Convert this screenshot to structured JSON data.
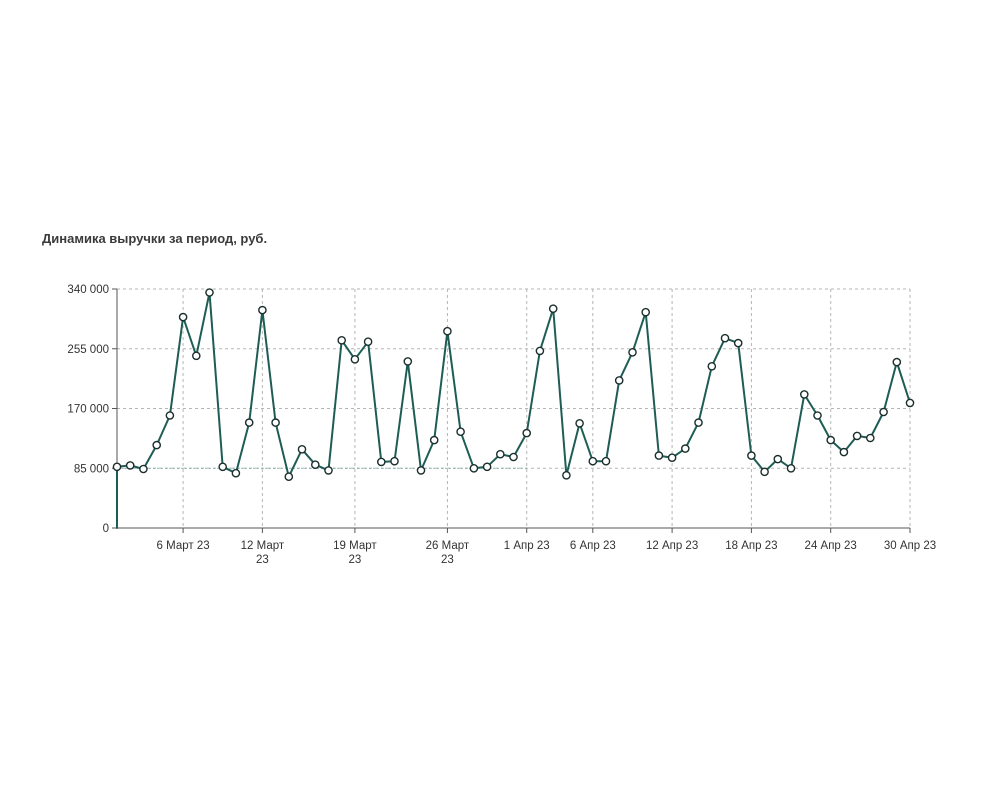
{
  "chart_data": {
    "type": "line",
    "title": "Динамика выручки за период, руб.",
    "xlabel": "",
    "ylabel": "",
    "ylim": [
      0,
      340000
    ],
    "y_ticks": [
      "0",
      "85 000",
      "170 000",
      "255 000",
      "340 000"
    ],
    "y_tick_values": [
      0,
      85000,
      170000,
      255000,
      340000
    ],
    "x_range": [
      "2023-03-01",
      "2023-04-30"
    ],
    "x_ticks": [
      {
        "date": "2023-03-06",
        "label": [
          "6 Март 23"
        ]
      },
      {
        "date": "2023-03-12",
        "label": [
          "12 Март",
          "23"
        ]
      },
      {
        "date": "2023-03-19",
        "label": [
          "19 Март",
          "23"
        ]
      },
      {
        "date": "2023-03-26",
        "label": [
          "26 Март",
          "23"
        ]
      },
      {
        "date": "2023-04-01",
        "label": [
          "1 Апр 23"
        ]
      },
      {
        "date": "2023-04-06",
        "label": [
          "6 Апр 23"
        ]
      },
      {
        "date": "2023-04-12",
        "label": [
          "12 Апр 23"
        ]
      },
      {
        "date": "2023-04-18",
        "label": [
          "18 Апр 23"
        ]
      },
      {
        "date": "2023-04-24",
        "label": [
          "24 Апр 23"
        ]
      },
      {
        "date": "2023-04-30",
        "label": [
          "30 Апр 23"
        ]
      }
    ],
    "grid": true,
    "series": [
      {
        "x": [
          "2023-03-01",
          "2023-03-02",
          "2023-03-03",
          "2023-03-04",
          "2023-03-05",
          "2023-03-06",
          "2023-03-07",
          "2023-03-08",
          "2023-03-09",
          "2023-03-10",
          "2023-03-11",
          "2023-03-12",
          "2023-03-13",
          "2023-03-14",
          "2023-03-15",
          "2023-03-16",
          "2023-03-17",
          "2023-03-18",
          "2023-03-19",
          "2023-03-20",
          "2023-03-21",
          "2023-03-22",
          "2023-03-23",
          "2023-03-24",
          "2023-03-25",
          "2023-03-26",
          "2023-03-27",
          "2023-03-28",
          "2023-03-29",
          "2023-03-30",
          "2023-03-31",
          "2023-04-01",
          "2023-04-02",
          "2023-04-03",
          "2023-04-04",
          "2023-04-05",
          "2023-04-06",
          "2023-04-07",
          "2023-04-08",
          "2023-04-09",
          "2023-04-10",
          "2023-04-11",
          "2023-04-12",
          "2023-04-13",
          "2023-04-14",
          "2023-04-15",
          "2023-04-16",
          "2023-04-17",
          "2023-04-18",
          "2023-04-19",
          "2023-04-20",
          "2023-04-21",
          "2023-04-22",
          "2023-04-23",
          "2023-04-24",
          "2023-04-25",
          "2023-04-26",
          "2023-04-27",
          "2023-04-28",
          "2023-04-29",
          "2023-04-30"
        ],
        "values": [
          87000,
          89000,
          84000,
          118000,
          160000,
          300000,
          245000,
          335000,
          87000,
          78000,
          150000,
          310000,
          150000,
          73000,
          112000,
          90000,
          82000,
          267000,
          240000,
          265000,
          94000,
          95000,
          237000,
          82000,
          125000,
          280000,
          137000,
          85000,
          87000,
          105000,
          101000,
          135000,
          252000,
          312000,
          75000,
          149000,
          95000,
          95000,
          210000,
          250000,
          307000,
          103000,
          100000,
          113000,
          150000,
          230000,
          270000,
          263000,
          103000,
          80000,
          98000,
          85000,
          190000,
          160000,
          125000,
          108000,
          131000,
          128000,
          165000,
          236000,
          178000
        ],
        "color": "#1e5d56"
      }
    ],
    "colors": {
      "line": "#1e5d56",
      "marker_fill": "#ffffff",
      "grid": "#b5b5b5",
      "axis": "#555555",
      "baseline_85000": "#6aa8a0"
    }
  }
}
